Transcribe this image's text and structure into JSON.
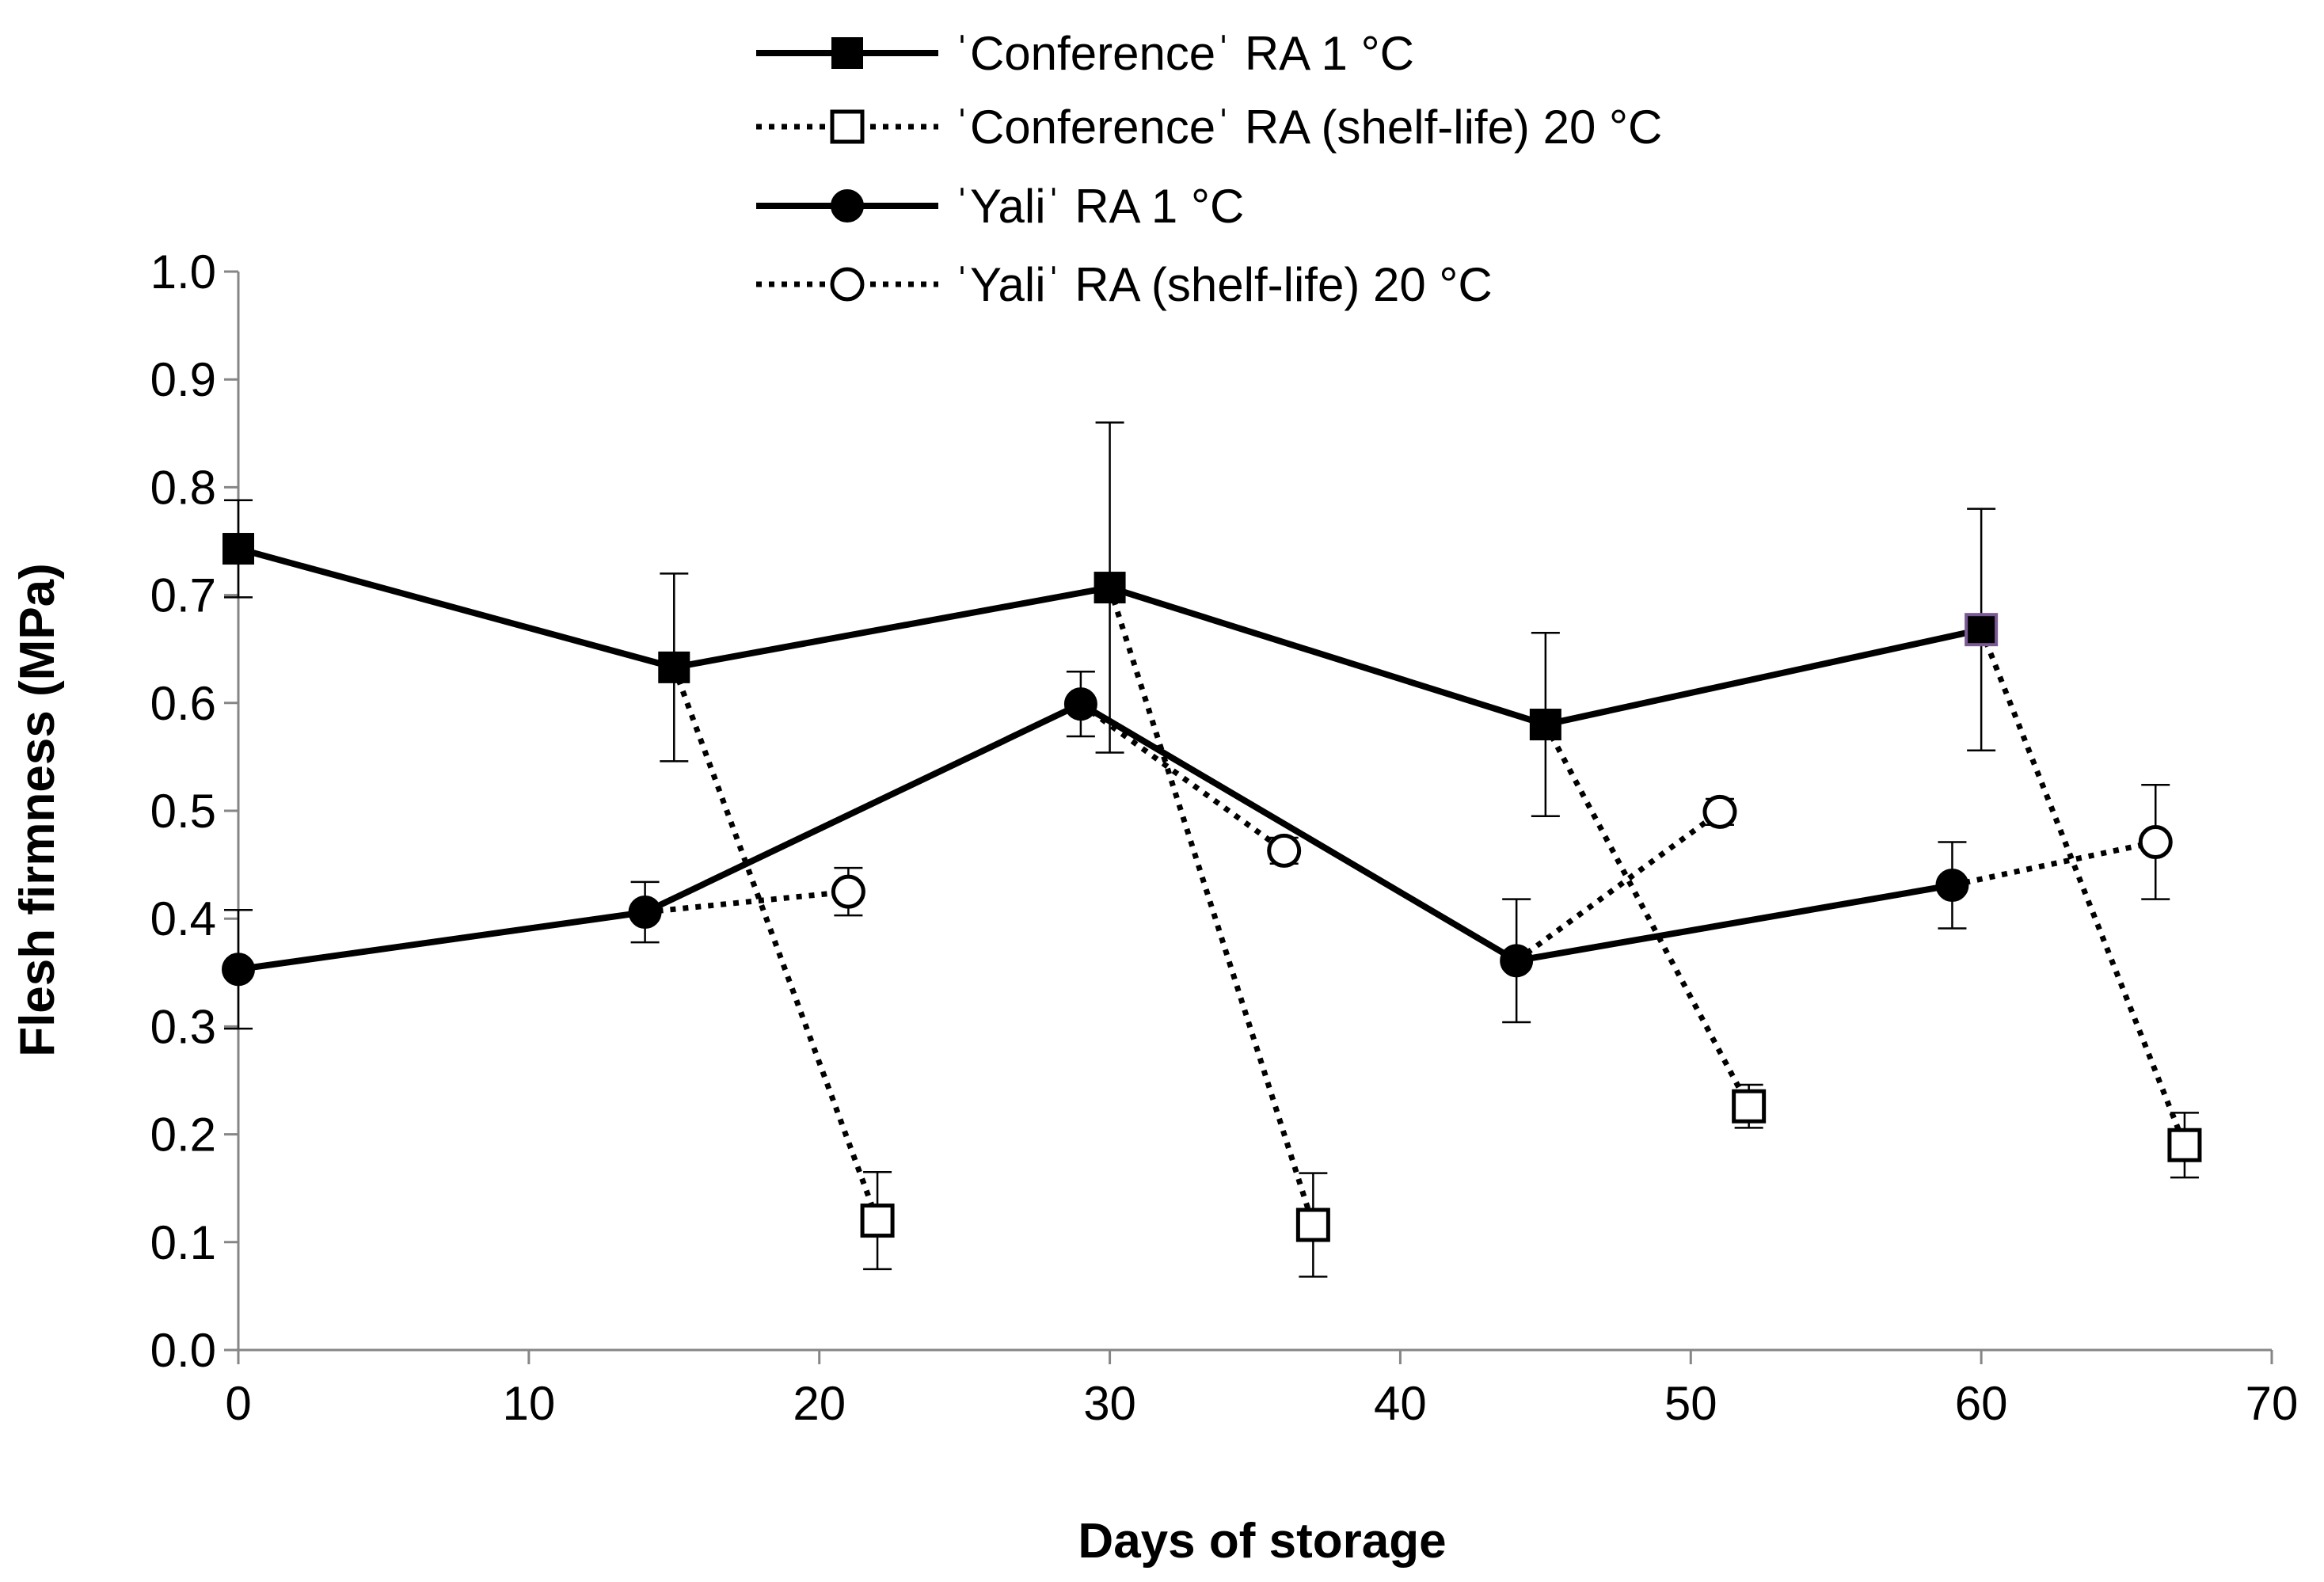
{
  "chart_data": {
    "type": "line",
    "title": "",
    "xlabel": "Days of storage",
    "ylabel": "Flesh firmness (MPa)",
    "xlim": [
      0,
      70
    ],
    "ylim": [
      0.0,
      1.0
    ],
    "xticks": [
      0,
      10,
      20,
      30,
      40,
      50,
      60,
      70
    ],
    "xtick_labels": [
      "0",
      "10",
      "20",
      "30",
      "40",
      "50",
      "60",
      "70"
    ],
    "yticks": [
      0.0,
      0.1,
      0.2,
      0.3,
      0.4,
      0.5,
      0.6,
      0.7,
      0.8,
      0.9,
      1.0
    ],
    "ytick_labels": [
      "0.0",
      "0.1",
      "0.2",
      "0.3",
      "0.4",
      "0.5",
      "0.6",
      "0.7",
      "0.8",
      "0.9",
      "1.0"
    ],
    "grid": false,
    "legend_position": "top-center",
    "series": [
      {
        "name": "ˈConferenceˈ RA 1 °C",
        "style": "solid",
        "marker": "square-filled",
        "points": [
          {
            "x": 0,
            "y": 0.743,
            "err": 0.045
          },
          {
            "x": 15,
            "y": 0.633,
            "err": 0.087
          },
          {
            "x": 30,
            "y": 0.707,
            "err": 0.153
          },
          {
            "x": 45,
            "y": 0.58,
            "err": 0.085
          },
          {
            "x": 60,
            "y": 0.668,
            "err": 0.112
          }
        ]
      },
      {
        "name": "ˈConferenceˈ RA (shelf-life) 20 °C",
        "style": "dotted",
        "marker": "square-open",
        "segments": [
          {
            "from": {
              "x": 15,
              "y": 0.633
            },
            "to": {
              "x": 22,
              "y": 0.12,
              "err": 0.045
            }
          },
          {
            "from": {
              "x": 30,
              "y": 0.707
            },
            "to": {
              "x": 37,
              "y": 0.116,
              "err": 0.048
            }
          },
          {
            "from": {
              "x": 45,
              "y": 0.58
            },
            "to": {
              "x": 52,
              "y": 0.226,
              "err": 0.02
            }
          },
          {
            "from": {
              "x": 60,
              "y": 0.668
            },
            "to": {
              "x": 67,
              "y": 0.19,
              "err": 0.03
            }
          }
        ]
      },
      {
        "name": "ˈYaliˈ RA 1 °C",
        "style": "solid",
        "marker": "circle-filled",
        "points": [
          {
            "x": 0,
            "y": 0.353,
            "err": 0.055
          },
          {
            "x": 14,
            "y": 0.406,
            "err": 0.028
          },
          {
            "x": 29,
            "y": 0.599,
            "err": 0.03
          },
          {
            "x": 44,
            "y": 0.361,
            "err": 0.057
          },
          {
            "x": 59,
            "y": 0.431,
            "err": 0.04
          }
        ]
      },
      {
        "name": "ˈYaliˈ RA (shelf-life) 20 °C",
        "style": "dotted",
        "marker": "circle-open",
        "segments": [
          {
            "from": {
              "x": 14,
              "y": 0.406
            },
            "to": {
              "x": 21,
              "y": 0.425,
              "err": 0.022
            }
          },
          {
            "from": {
              "x": 29,
              "y": 0.599
            },
            "to": {
              "x": 36,
              "y": 0.463,
              "err": 0.012
            }
          },
          {
            "from": {
              "x": 44,
              "y": 0.361
            },
            "to": {
              "x": 51,
              "y": 0.499,
              "err": 0.012
            }
          },
          {
            "from": {
              "x": 59,
              "y": 0.431
            },
            "to": {
              "x": 66,
              "y": 0.471,
              "err": 0.053
            }
          }
        ]
      }
    ]
  },
  "colors": {
    "line": "#000000",
    "marker_fill": "#000000",
    "open_fill": "#ffffff",
    "axis": "#868686",
    "highlight_outline": "#7a5a94"
  }
}
